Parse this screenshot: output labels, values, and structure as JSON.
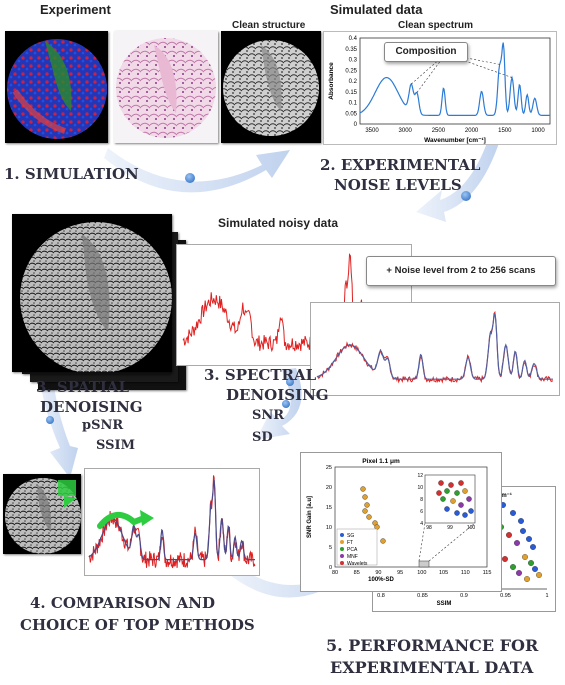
{
  "headers": {
    "experiment": "Experiment",
    "simulated_data": "Simulated data",
    "clean_structure": "Clean structure",
    "clean_spectrum": "Clean spectrum",
    "simulated_noisy": "Simulated noisy data"
  },
  "steps": {
    "s1": "1. SIMULATION",
    "s2a": "2. EXPERIMENTAL",
    "s2b": "NOISE LEVELS",
    "s3a_1": "3. SPECTRAL",
    "s3a_2": "DENOISING",
    "s3b_1": "3. SPATIAL",
    "s3b_2": "DENOISING",
    "s4a": "4. COMPARISON AND",
    "s4b": "CHOICE OF TOP METHODS",
    "s5a": "5. PERFORMANCE FOR",
    "s5b": "EXPERIMENTAL DATA"
  },
  "metrics": {
    "snr": "SNR",
    "sd": "SD",
    "psnr": "pSNR",
    "ssim": "SSIM"
  },
  "spectrum": {
    "composition_label": "Composition",
    "ylabel": "Absorbance",
    "xlabel": "Wavenumber [cm⁻¹]",
    "yticks": [
      "0.4",
      "0.35",
      "0.3",
      "0.25",
      "0.2",
      "0.15",
      "0.1",
      "0.05",
      "0"
    ],
    "xticks": [
      "3500",
      "3000",
      "2500",
      "2000",
      "1500",
      "1000"
    ]
  },
  "noise_box": "+ Noise level from 2 to 256 scans",
  "scatter": {
    "title": "Pixel 1.1 μm",
    "ylabel": "SNR Gain [a.u]",
    "xlabel": "100%-SD",
    "yticks": [
      "25",
      "20",
      "15",
      "10",
      "5",
      "0"
    ],
    "xticks": [
      "80",
      "85",
      "90",
      "95",
      "100",
      "105",
      "110",
      "115"
    ],
    "inset_yticks": [
      "12",
      "10",
      "8",
      "6",
      "4"
    ],
    "inset_xticks": [
      "98",
      "99",
      "100"
    ],
    "legend": [
      "SG",
      "FT",
      "PCA",
      "MNF",
      "Wavelets"
    ],
    "legend_colors": [
      "#2a5bd7",
      "#e0a030",
      "#2f9e2f",
      "#8b3aa8",
      "#d43030"
    ],
    "back_xlabel": "SSIM",
    "back_xticks": [
      "0.8",
      "0.85",
      "0.9",
      "0.95",
      "1"
    ],
    "back_title_fragment": "0 cm⁻¹"
  },
  "colors": {
    "spectrum_line": "#2c7bd6",
    "noisy_line": "#e02020",
    "arrow": "#c5d6ee",
    "dot": "#4f8fd8",
    "step_text": "#2f2f3f"
  }
}
